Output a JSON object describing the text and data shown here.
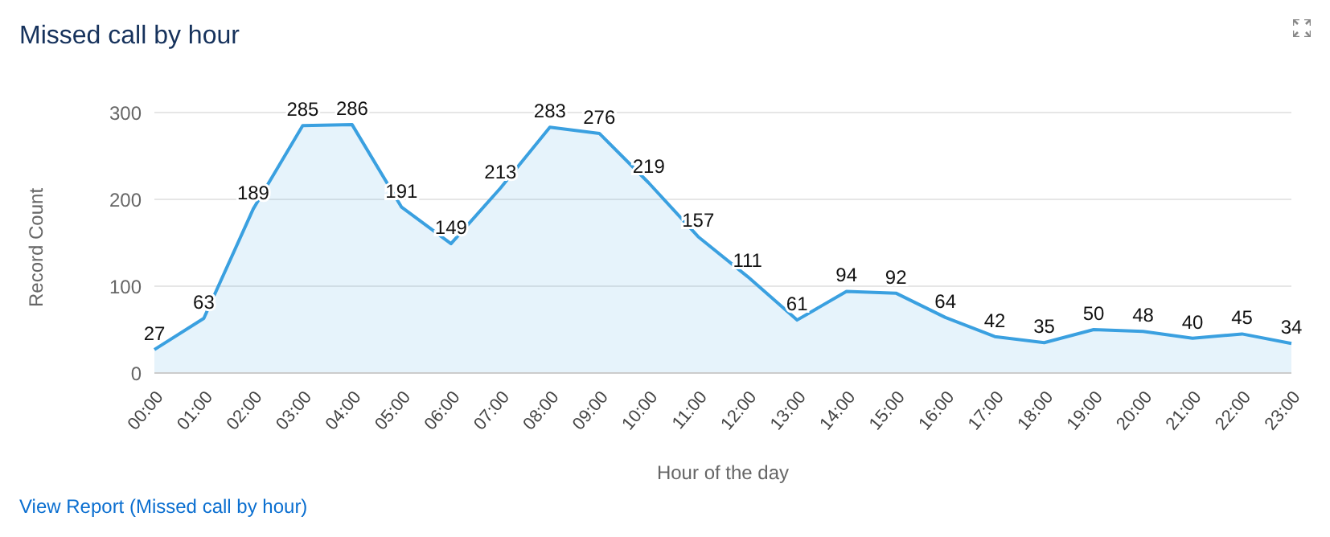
{
  "chart_data": {
    "type": "area",
    "title": "Missed call by hour",
    "xlabel": "Hour of the day",
    "ylabel": "Record Count",
    "categories": [
      "00:00",
      "01:00",
      "02:00",
      "03:00",
      "04:00",
      "05:00",
      "06:00",
      "07:00",
      "08:00",
      "09:00",
      "10:00",
      "11:00",
      "12:00",
      "13:00",
      "14:00",
      "15:00",
      "16:00",
      "17:00",
      "18:00",
      "19:00",
      "20:00",
      "21:00",
      "22:00",
      "23:00"
    ],
    "values": [
      27,
      63,
      189,
      285,
      286,
      191,
      149,
      213,
      283,
      276,
      219,
      157,
      111,
      61,
      94,
      92,
      64,
      42,
      35,
      50,
      48,
      40,
      45,
      34
    ],
    "color": "#3aa0e0",
    "ylim": [
      0,
      300
    ],
    "yticks": [
      0,
      100,
      200,
      300
    ],
    "grid": "y",
    "data_labels": true,
    "marker": "none",
    "annotations": [
      "View Report (Missed call by hour)"
    ]
  }
}
